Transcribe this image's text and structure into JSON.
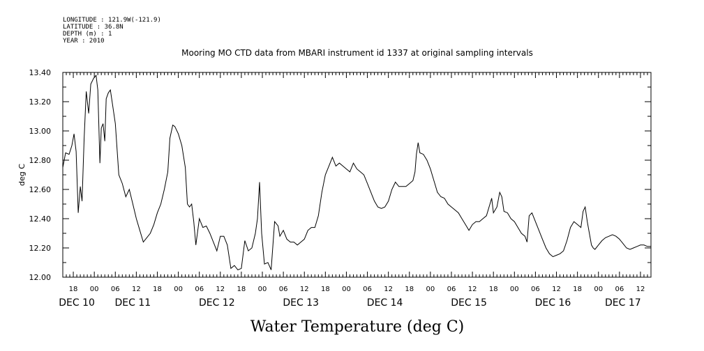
{
  "header": {
    "meta_lines": [
      "LONGITUDE : 121.9W(-121.9)",
      "LATITUDE : 36.8N",
      "DEPTH (m) : 1",
      "YEAR : 2010"
    ],
    "title": "Mooring MO CTD data from MBARI instrument id 1337 at original sampling intervals"
  },
  "chart_data": {
    "type": "line",
    "title": "Mooring MO CTD data from MBARI instrument id 1337 at original sampling intervals",
    "xlabel": "Water Temperature (deg C)",
    "ylabel": "deg C",
    "ylim": [
      12.0,
      13.4
    ],
    "yticks": [
      "12.00",
      "12.20",
      "12.40",
      "12.60",
      "12.80",
      "13.00",
      "13.20",
      "13.40"
    ],
    "x_unit": "hours since DEC 10 00:00",
    "xlim": [
      -9,
      159
    ],
    "hour_ticks": [
      {
        "h": -6,
        "label": "18"
      },
      {
        "h": 0,
        "label": "00"
      },
      {
        "h": 6,
        "label": "06"
      },
      {
        "h": 12,
        "label": "12"
      },
      {
        "h": 18,
        "label": "18"
      },
      {
        "h": 24,
        "label": "00"
      },
      {
        "h": 30,
        "label": "06"
      },
      {
        "h": 36,
        "label": "12"
      },
      {
        "h": 42,
        "label": "18"
      },
      {
        "h": 48,
        "label": "00"
      },
      {
        "h": 54,
        "label": "06"
      },
      {
        "h": 60,
        "label": "12"
      },
      {
        "h": 66,
        "label": "18"
      },
      {
        "h": 72,
        "label": "00"
      },
      {
        "h": 78,
        "label": "06"
      },
      {
        "h": 84,
        "label": "12"
      },
      {
        "h": 90,
        "label": "18"
      },
      {
        "h": 96,
        "label": "00"
      },
      {
        "h": 102,
        "label": "06"
      },
      {
        "h": 108,
        "label": "12"
      },
      {
        "h": 114,
        "label": "18"
      },
      {
        "h": 120,
        "label": "00"
      },
      {
        "h": 126,
        "label": "06"
      },
      {
        "h": 132,
        "label": "12"
      },
      {
        "h": 138,
        "label": "18"
      },
      {
        "h": 144,
        "label": "00"
      },
      {
        "h": 150,
        "label": "06"
      },
      {
        "h": 156,
        "label": "12"
      }
    ],
    "day_labels": [
      {
        "h": -5,
        "label": "DEC 10"
      },
      {
        "h": 11,
        "label": "DEC 11"
      },
      {
        "h": 35,
        "label": "DEC 12"
      },
      {
        "h": 59,
        "label": "DEC 13"
      },
      {
        "h": 83,
        "label": "DEC 14"
      },
      {
        "h": 107,
        "label": "DEC 15"
      },
      {
        "h": 131,
        "label": "DEC 16"
      },
      {
        "h": 151,
        "label": "DEC 17"
      }
    ],
    "series": [
      {
        "color": "#000000",
        "points": [
          [
            -9,
            12.75
          ],
          [
            -8.2,
            12.85
          ],
          [
            -7.2,
            12.84
          ],
          [
            -6.4,
            12.9
          ],
          [
            -5.8,
            12.98
          ],
          [
            -5.2,
            12.86
          ],
          [
            -4.6,
            12.44
          ],
          [
            -4.0,
            12.62
          ],
          [
            -3.5,
            12.52
          ],
          [
            -2.9,
            12.95
          ],
          [
            -2.3,
            13.27
          ],
          [
            -1.6,
            13.12
          ],
          [
            -1.0,
            13.32
          ],
          [
            -0.2,
            13.36
          ],
          [
            0.5,
            13.38
          ],
          [
            1.0,
            13.28
          ],
          [
            1.6,
            12.78
          ],
          [
            2.0,
            13.02
          ],
          [
            2.5,
            13.05
          ],
          [
            3.0,
            12.93
          ],
          [
            3.4,
            13.22
          ],
          [
            4.0,
            13.26
          ],
          [
            4.6,
            13.28
          ],
          [
            5.2,
            13.18
          ],
          [
            6.0,
            13.05
          ],
          [
            7.0,
            12.7
          ],
          [
            8.0,
            12.64
          ],
          [
            9.0,
            12.55
          ],
          [
            10.0,
            12.6
          ],
          [
            11.0,
            12.5
          ],
          [
            12.0,
            12.4
          ],
          [
            13.0,
            12.32
          ],
          [
            14.0,
            12.24
          ],
          [
            15.0,
            12.27
          ],
          [
            16.0,
            12.3
          ],
          [
            17.0,
            12.36
          ],
          [
            18.0,
            12.44
          ],
          [
            19.0,
            12.5
          ],
          [
            20.0,
            12.6
          ],
          [
            21.0,
            12.72
          ],
          [
            21.6,
            12.95
          ],
          [
            22.4,
            13.04
          ],
          [
            23.0,
            13.03
          ],
          [
            24.0,
            12.98
          ],
          [
            25.0,
            12.9
          ],
          [
            26.0,
            12.75
          ],
          [
            26.6,
            12.5
          ],
          [
            27.2,
            12.48
          ],
          [
            27.8,
            12.5
          ],
          [
            28.4,
            12.38
          ],
          [
            29.0,
            12.22
          ],
          [
            30.0,
            12.4
          ],
          [
            31.0,
            12.34
          ],
          [
            32.0,
            12.35
          ],
          [
            33.0,
            12.3
          ],
          [
            34.0,
            12.24
          ],
          [
            35.0,
            12.18
          ],
          [
            36.0,
            12.28
          ],
          [
            37.0,
            12.28
          ],
          [
            38.0,
            12.22
          ],
          [
            39.0,
            12.06
          ],
          [
            40.0,
            12.08
          ],
          [
            41.0,
            12.05
          ],
          [
            42.0,
            12.06
          ],
          [
            43.0,
            12.25
          ],
          [
            44.0,
            12.18
          ],
          [
            45.0,
            12.2
          ],
          [
            46.0,
            12.3
          ],
          [
            46.6,
            12.4
          ],
          [
            47.2,
            12.65
          ],
          [
            47.8,
            12.3
          ],
          [
            48.6,
            12.09
          ],
          [
            49.6,
            12.1
          ],
          [
            50.5,
            12.05
          ],
          [
            51.5,
            12.38
          ],
          [
            52.5,
            12.35
          ],
          [
            53.0,
            12.28
          ],
          [
            54.0,
            12.32
          ],
          [
            55.0,
            12.26
          ],
          [
            56.0,
            12.24
          ],
          [
            57.0,
            12.24
          ],
          [
            58.0,
            12.22
          ],
          [
            59.0,
            12.24
          ],
          [
            60.0,
            12.26
          ],
          [
            61.0,
            12.32
          ],
          [
            62.0,
            12.34
          ],
          [
            63.0,
            12.34
          ],
          [
            64.0,
            12.42
          ],
          [
            65.0,
            12.58
          ],
          [
            66.0,
            12.7
          ],
          [
            67.0,
            12.76
          ],
          [
            68.0,
            12.82
          ],
          [
            69.0,
            12.76
          ],
          [
            70.0,
            12.78
          ],
          [
            71.0,
            12.76
          ],
          [
            72.0,
            12.74
          ],
          [
            73.0,
            12.72
          ],
          [
            74.0,
            12.78
          ],
          [
            75.0,
            12.74
          ],
          [
            76.0,
            12.72
          ],
          [
            77.0,
            12.7
          ],
          [
            78.0,
            12.64
          ],
          [
            79.0,
            12.58
          ],
          [
            80.0,
            12.52
          ],
          [
            81.0,
            12.48
          ],
          [
            82.0,
            12.47
          ],
          [
            83.0,
            12.48
          ],
          [
            84.0,
            12.52
          ],
          [
            85.0,
            12.6
          ],
          [
            86.0,
            12.65
          ],
          [
            87.0,
            12.62
          ],
          [
            88.0,
            12.62
          ],
          [
            89.0,
            12.62
          ],
          [
            90.0,
            12.64
          ],
          [
            91.0,
            12.66
          ],
          [
            91.6,
            12.72
          ],
          [
            92.0,
            12.84
          ],
          [
            92.5,
            12.92
          ],
          [
            93.0,
            12.85
          ],
          [
            94.0,
            12.84
          ],
          [
            95.0,
            12.8
          ],
          [
            96.0,
            12.74
          ],
          [
            97.0,
            12.66
          ],
          [
            98.0,
            12.58
          ],
          [
            99.0,
            12.55
          ],
          [
            100.0,
            12.54
          ],
          [
            101.0,
            12.5
          ],
          [
            102.0,
            12.48
          ],
          [
            103.0,
            12.46
          ],
          [
            104.0,
            12.44
          ],
          [
            105.0,
            12.4
          ],
          [
            106.0,
            12.36
          ],
          [
            107.0,
            12.32
          ],
          [
            108.0,
            12.36
          ],
          [
            109.0,
            12.38
          ],
          [
            110.0,
            12.38
          ],
          [
            111.0,
            12.4
          ],
          [
            112.0,
            12.42
          ],
          [
            113.0,
            12.5
          ],
          [
            113.5,
            12.54
          ],
          [
            114.0,
            12.44
          ],
          [
            115.0,
            12.48
          ],
          [
            115.8,
            12.58
          ],
          [
            116.4,
            12.55
          ],
          [
            117.0,
            12.45
          ],
          [
            118.0,
            12.44
          ],
          [
            119.0,
            12.4
          ],
          [
            120.0,
            12.38
          ],
          [
            121.0,
            12.34
          ],
          [
            122.0,
            12.3
          ],
          [
            123.0,
            12.28
          ],
          [
            123.6,
            12.24
          ],
          [
            124.2,
            12.42
          ],
          [
            125.0,
            12.44
          ],
          [
            126.0,
            12.38
          ],
          [
            127.0,
            12.32
          ],
          [
            128.0,
            12.26
          ],
          [
            129.0,
            12.2
          ],
          [
            130.0,
            12.16
          ],
          [
            131.0,
            12.14
          ],
          [
            132.0,
            12.15
          ],
          [
            133.0,
            12.16
          ],
          [
            134.0,
            12.18
          ],
          [
            135.0,
            12.25
          ],
          [
            136.0,
            12.34
          ],
          [
            137.0,
            12.38
          ],
          [
            138.0,
            12.36
          ],
          [
            139.0,
            12.34
          ],
          [
            139.6,
            12.45
          ],
          [
            140.2,
            12.48
          ],
          [
            140.8,
            12.38
          ],
          [
            141.4,
            12.3
          ],
          [
            142.0,
            12.22
          ],
          [
            142.5,
            12.2
          ],
          [
            143.0,
            12.19
          ],
          [
            144.0,
            12.22
          ],
          [
            145.0,
            12.25
          ],
          [
            146.0,
            12.27
          ],
          [
            147.0,
            12.28
          ],
          [
            148.0,
            12.29
          ],
          [
            149.0,
            12.28
          ],
          [
            150.0,
            12.26
          ],
          [
            151.0,
            12.23
          ],
          [
            152.0,
            12.2
          ],
          [
            153.0,
            12.19
          ],
          [
            154.0,
            12.2
          ],
          [
            155.0,
            12.21
          ],
          [
            156.0,
            12.22
          ],
          [
            157.0,
            12.22
          ],
          [
            158.0,
            12.21
          ],
          [
            159.0,
            12.21
          ]
        ]
      }
    ]
  }
}
